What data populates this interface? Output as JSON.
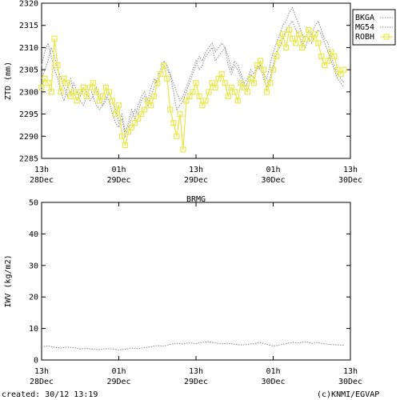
{
  "footer": {
    "created": "created: 30/12 13:19",
    "credit": "(c)KNMI/EGVAP"
  },
  "colors": {
    "robh": "#e8e850",
    "bkga": "#888888",
    "mg54": "#888888",
    "iwv": "#888888",
    "axis": "#000000"
  },
  "chart_data": [
    {
      "type": "line",
      "title": "",
      "xlabel": "",
      "ylabel": "ZTD (mm)",
      "ylim": [
        2285,
        2320
      ],
      "yticks": [
        2285,
        2290,
        2295,
        2300,
        2305,
        2310,
        2315,
        2320
      ],
      "xlim": [
        0,
        48
      ],
      "xticks": [
        {
          "x": 0,
          "l1": "13h",
          "l2": "28Dec"
        },
        {
          "x": 12,
          "l1": "01h",
          "l2": "29Dec"
        },
        {
          "x": 24,
          "l1": "13h",
          "l2": "29Dec"
        },
        {
          "x": 36,
          "l1": "01h",
          "l2": "30Dec"
        },
        {
          "x": 48,
          "l1": "13h",
          "l2": "30Dec"
        }
      ],
      "legend_position": "top-right",
      "series": [
        {
          "name": "BKGA",
          "style": "dotted",
          "x": [
            0,
            0.5,
            1,
            1.5,
            2,
            2.5,
            3,
            3.5,
            4,
            4.5,
            5,
            5.5,
            6,
            6.5,
            7,
            7.5,
            8,
            8.5,
            9,
            9.5,
            10,
            10.5,
            11,
            11.5,
            12,
            12.5,
            13,
            13.5,
            14,
            14.5,
            15,
            15.5,
            16,
            16.5,
            17,
            17.5,
            18,
            18.5,
            19,
            19.5,
            20,
            20.5,
            21,
            21.5,
            22,
            22.5,
            23,
            23.5,
            24,
            24.5,
            25,
            25.5,
            26,
            26.5,
            27,
            27.5,
            28,
            28.5,
            29,
            29.5,
            30,
            30.5,
            31,
            31.5,
            32,
            32.5,
            33,
            33.5,
            34,
            34.5,
            35,
            35.5,
            36,
            36.5,
            37,
            37.5,
            38,
            38.5,
            39,
            39.5,
            40,
            40.5,
            41,
            41.5,
            42,
            42.5,
            43,
            43.5,
            44,
            44.5,
            45,
            45.5,
            46,
            46.5,
            47
          ],
          "y": [
            2306,
            2309,
            2311,
            2308,
            2305,
            2303,
            2300,
            2298,
            2301,
            2303,
            2300,
            2298,
            2299,
            2301,
            2300,
            2298,
            2299,
            2301,
            2298,
            2297,
            2298,
            2300,
            2298,
            2296,
            2293,
            2295,
            2291,
            2293,
            2296,
            2294,
            2297,
            2299,
            2300,
            2298,
            2301,
            2303,
            2302,
            2304,
            2306,
            2305,
            2304,
            2302,
            2300,
            2298,
            2299,
            2301,
            2303,
            2305,
            2307,
            2305,
            2306,
            2308,
            2309,
            2310,
            2307,
            2308,
            2309,
            2310,
            2308,
            2305,
            2307,
            2306,
            2304,
            2302,
            2303,
            2305,
            2304,
            2306,
            2305,
            2304,
            2303,
            2306,
            2309,
            2311,
            2313,
            2315,
            2316,
            2318,
            2319,
            2317,
            2315,
            2313,
            2312,
            2314,
            2313,
            2315,
            2316,
            2314,
            2312,
            2311,
            2308,
            2306,
            2304,
            2303,
            2302
          ]
        },
        {
          "name": "MG54",
          "style": "dotted",
          "x": [
            0,
            0.5,
            1,
            1.5,
            2,
            2.5,
            3,
            3.5,
            4,
            4.5,
            5,
            5.5,
            6,
            6.5,
            7,
            7.5,
            8,
            8.5,
            9,
            9.5,
            10,
            10.5,
            11,
            11.5,
            12,
            12.5,
            13,
            13.5,
            14,
            14.5,
            15,
            15.5,
            16,
            16.5,
            17,
            17.5,
            18,
            18.5,
            19,
            19.5,
            20,
            20.5,
            21,
            21.5,
            22,
            22.5,
            23,
            23.5,
            24,
            24.5,
            25,
            25.5,
            26,
            26.5,
            27,
            27.5,
            28,
            28.5,
            29,
            29.5,
            30,
            30.5,
            31,
            31.5,
            32,
            32.5,
            33,
            33.5,
            34,
            34.5,
            35,
            35.5,
            36,
            36.5,
            37,
            37.5,
            38,
            38.5,
            39,
            39.5,
            40,
            40.5,
            41,
            41.5,
            42,
            42.5,
            43,
            43.5,
            44,
            44.5,
            45,
            45.5,
            46,
            46.5,
            47
          ],
          "y": [
            2303,
            2305,
            2307,
            2310,
            2308,
            2305,
            2303,
            2301,
            2299,
            2300,
            2302,
            2300,
            2298,
            2297,
            2299,
            2301,
            2299,
            2297,
            2296,
            2297,
            2299,
            2298,
            2295,
            2293,
            2292,
            2294,
            2290,
            2292,
            2294,
            2296,
            2295,
            2298,
            2299,
            2297,
            2299,
            2301,
            2303,
            2305,
            2307,
            2306,
            2304,
            2300,
            2296,
            2297,
            2298,
            2300,
            2302,
            2304,
            2306,
            2308,
            2307,
            2309,
            2310,
            2311,
            2309,
            2310,
            2311,
            2310,
            2306,
            2304,
            2306,
            2305,
            2303,
            2301,
            2302,
            2304,
            2303,
            2305,
            2306,
            2303,
            2301,
            2303,
            2306,
            2309,
            2310,
            2312,
            2314,
            2315,
            2316,
            2314,
            2313,
            2311,
            2310,
            2312,
            2311,
            2313,
            2314,
            2313,
            2311,
            2309,
            2307,
            2305,
            2303,
            2302,
            2301
          ]
        },
        {
          "name": "ROBH",
          "style": "solid-square-markers",
          "x": [
            0,
            0.5,
            1,
            1.5,
            2,
            2.5,
            3,
            3.5,
            4,
            4.5,
            5,
            5.5,
            6,
            6.5,
            7,
            7.5,
            8,
            8.5,
            9,
            9.5,
            10,
            10.5,
            11,
            11.5,
            12,
            12.5,
            13,
            13.5,
            14,
            14.5,
            15,
            15.5,
            16,
            16.5,
            17,
            17.5,
            18,
            18.5,
            19,
            19.5,
            20,
            20.5,
            21,
            21.5,
            22,
            22.5,
            23,
            23.5,
            24,
            24.5,
            25,
            25.5,
            26,
            26.5,
            27,
            27.5,
            28,
            28.5,
            29,
            29.5,
            30,
            30.5,
            31,
            31.5,
            32,
            32.5,
            33,
            33.5,
            34,
            34.5,
            35,
            35.5,
            36,
            36.5,
            37,
            37.5,
            38,
            38.5,
            39,
            39.5,
            40,
            40.5,
            41,
            41.5,
            42,
            42.5,
            43,
            43.5,
            44,
            44.5,
            45,
            45.5,
            46,
            46.5,
            47
          ],
          "y": [
            2301,
            2303,
            2302,
            2300,
            2312,
            2306,
            2300,
            2303,
            2302,
            2299,
            2300,
            2298,
            2300,
            2301,
            2299,
            2301,
            2302,
            2300,
            2298,
            2299,
            2301,
            2300,
            2298,
            2295,
            2297,
            2290,
            2288,
            2291,
            2292,
            2293,
            2294,
            2295,
            2296,
            2298,
            2297,
            2299,
            2302,
            2304,
            2306,
            2303,
            2296,
            2293,
            2290,
            2295,
            2287,
            2298,
            2299,
            2300,
            2302,
            2299,
            2297,
            2298,
            2300,
            2302,
            2301,
            2303,
            2304,
            2302,
            2299,
            2301,
            2300,
            2298,
            2302,
            2301,
            2300,
            2303,
            2302,
            2306,
            2307,
            2305,
            2300,
            2302,
            2305,
            2308,
            2311,
            2313,
            2310,
            2314,
            2312,
            2311,
            2313,
            2310,
            2312,
            2314,
            2312,
            2313,
            2311,
            2308,
            2306,
            2307,
            2309,
            2308,
            2305,
            2304,
            2305
          ]
        }
      ]
    },
    {
      "type": "line",
      "title": "BRMG",
      "xlabel": "",
      "ylabel": "IWV (kg/m2)",
      "ylim": [
        0,
        50
      ],
      "yticks": [
        0,
        10,
        20,
        30,
        40,
        50
      ],
      "xlim": [
        0,
        48
      ],
      "xticks": [
        {
          "x": 0,
          "l1": "13h",
          "l2": "28Dec"
        },
        {
          "x": 12,
          "l1": "01h",
          "l2": "29Dec"
        },
        {
          "x": 24,
          "l1": "13h",
          "l2": "29Dec"
        },
        {
          "x": 36,
          "l1": "01h",
          "l2": "30Dec"
        },
        {
          "x": 48,
          "l1": "13h",
          "l2": "30Dec"
        }
      ],
      "series": [
        {
          "style": "dotted",
          "x": [
            0,
            1,
            2,
            3,
            4,
            5,
            6,
            7,
            8,
            9,
            10,
            11,
            12,
            13,
            14,
            15,
            16,
            17,
            18,
            19,
            20,
            21,
            22,
            23,
            24,
            25,
            26,
            27,
            28,
            29,
            30,
            31,
            32,
            33,
            34,
            35,
            36,
            37,
            38,
            39,
            40,
            41,
            42,
            43,
            44,
            45,
            46,
            47
          ],
          "y": [
            4.2,
            4.5,
            4.0,
            3.8,
            4.1,
            3.9,
            3.5,
            3.7,
            3.4,
            3.3,
            3.6,
            3.5,
            3.2,
            3.4,
            3.8,
            3.6,
            3.9,
            4.2,
            4.6,
            4.4,
            5.0,
            5.3,
            5.1,
            5.5,
            5.2,
            5.6,
            5.8,
            5.4,
            5.1,
            5.3,
            5.0,
            4.8,
            4.9,
            5.2,
            5.5,
            5.0,
            4.4,
            4.8,
            5.2,
            5.6,
            5.4,
            5.8,
            5.3,
            5.5,
            5.1,
            4.9,
            4.8,
            4.7
          ]
        }
      ]
    }
  ]
}
